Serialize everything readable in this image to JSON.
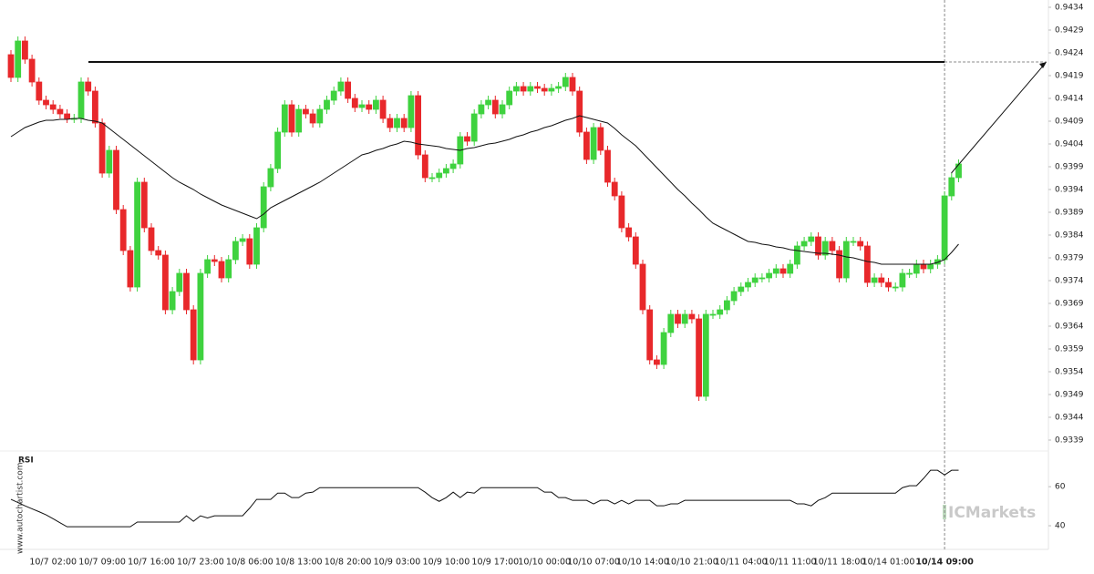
{
  "chart_data": [
    {
      "type": "candlestick",
      "up_color": "#3fd23f",
      "down_color": "#e8282b",
      "ma_color": "#111111",
      "resistance_color": "#111111",
      "ylim": [
        0.93366,
        0.94356
      ],
      "yticks": [
        0.9434,
        0.9429,
        0.9424,
        0.9419,
        0.9414,
        0.9409,
        0.9404,
        0.9399,
        0.9394,
        0.9389,
        0.9384,
        0.9379,
        0.9374,
        0.9369,
        0.9364,
        0.9359,
        0.9354,
        0.9349,
        0.9344,
        0.9339
      ],
      "resistance": 0.9422,
      "categories": [
        null,
        null,
        null,
        null,
        null,
        null,
        "10/7 02:00",
        null,
        null,
        null,
        null,
        null,
        null,
        "10/7 09:00",
        null,
        null,
        null,
        null,
        null,
        null,
        "10/7 16:00",
        null,
        null,
        null,
        null,
        null,
        null,
        "10/7 23:00",
        null,
        null,
        null,
        null,
        null,
        null,
        "10/8 06:00",
        null,
        null,
        null,
        null,
        null,
        null,
        "10/8 13:00",
        null,
        null,
        null,
        null,
        null,
        null,
        "10/8 20:00",
        null,
        null,
        null,
        null,
        null,
        null,
        "10/9 03:00",
        null,
        null,
        null,
        null,
        null,
        null,
        "10/9 10:00",
        null,
        null,
        null,
        null,
        null,
        null,
        "10/9 17:00",
        null,
        null,
        null,
        null,
        null,
        null,
        "10/10 00:00",
        null,
        null,
        null,
        null,
        null,
        null,
        "10/10 07:00",
        null,
        null,
        null,
        null,
        null,
        null,
        "10/10 14:00",
        null,
        null,
        null,
        null,
        null,
        null,
        "10/10 21:00",
        null,
        null,
        null,
        null,
        null,
        null,
        "10/11 04:00",
        null,
        null,
        null,
        null,
        null,
        null,
        "10/11 11:00",
        null,
        null,
        null,
        null,
        null,
        null,
        "10/11 18:00",
        null,
        null,
        null,
        null,
        null,
        null,
        "10/14 01:00",
        null,
        null,
        null,
        null,
        null,
        null,
        null,
        "10/14 09:00",
        null,
        null
      ],
      "open": [
        0.94236,
        0.94186,
        0.94266,
        0.94226,
        0.94176,
        0.94136,
        0.94126,
        0.94116,
        0.94106,
        0.94096,
        0.94096,
        0.94176,
        0.94156,
        0.94086,
        0.93976,
        0.94026,
        0.93896,
        0.93806,
        0.93726,
        0.93956,
        0.93856,
        0.93806,
        0.93796,
        0.93676,
        0.93716,
        0.93756,
        0.93676,
        0.93566,
        0.93756,
        0.93786,
        0.93782,
        0.93746,
        0.93786,
        0.93826,
        0.93832,
        0.93776,
        0.93856,
        0.93946,
        0.93986,
        0.94066,
        0.94126,
        0.94066,
        0.94116,
        0.94106,
        0.94086,
        0.94116,
        0.94136,
        0.94156,
        0.94176,
        0.9414,
        0.9412,
        0.94126,
        0.94116,
        0.94136,
        0.94096,
        0.94076,
        0.94096,
        0.94076,
        0.94146,
        0.94016,
        0.93966,
        0.93966,
        0.93976,
        0.93986,
        0.93996,
        0.94056,
        0.94046,
        0.94106,
        0.94126,
        0.94136,
        0.94106,
        0.94126,
        0.94156,
        0.94166,
        0.94156,
        0.94166,
        0.94162,
        0.94156,
        0.94162,
        0.94166,
        0.94186,
        0.94156,
        0.94066,
        0.94006,
        0.94076,
        0.94026,
        0.93956,
        0.93926,
        0.93856,
        0.93836,
        0.93776,
        0.93676,
        0.93566,
        0.93556,
        0.93626,
        0.93666,
        0.93646,
        0.93666,
        0.93656,
        0.93486,
        0.93666,
        0.93666,
        0.93676,
        0.93696,
        0.93716,
        0.93726,
        0.93736,
        0.93746,
        0.93746,
        0.93756,
        0.93766,
        0.93756,
        0.93776,
        0.93816,
        0.93826,
        0.93836,
        0.93796,
        0.93826,
        0.93806,
        0.93746,
        0.93826,
        0.93826,
        0.93816,
        0.93736,
        0.93746,
        0.93736,
        0.93726,
        0.93726,
        0.93756,
        0.93756,
        0.93776,
        0.93766,
        0.93776,
        0.93786,
        0.93926,
        0.93966
      ],
      "high": [
        0.94246,
        0.94276,
        0.94276,
        0.94236,
        0.94186,
        0.94146,
        0.94136,
        0.94126,
        0.94116,
        0.94106,
        0.94186,
        0.94186,
        0.94166,
        0.94096,
        0.94036,
        0.94036,
        0.93906,
        0.93816,
        0.93966,
        0.93966,
        0.93866,
        0.93816,
        0.93806,
        0.93726,
        0.93766,
        0.93766,
        0.93686,
        0.93766,
        0.93796,
        0.93796,
        0.93792,
        0.93796,
        0.93836,
        0.93842,
        0.93842,
        0.93866,
        0.93956,
        0.93996,
        0.94076,
        0.94136,
        0.94136,
        0.94126,
        0.94126,
        0.94116,
        0.94126,
        0.94146,
        0.94166,
        0.94186,
        0.94186,
        0.9415,
        0.94136,
        0.94136,
        0.94146,
        0.94146,
        0.94106,
        0.94106,
        0.94106,
        0.94156,
        0.94156,
        0.94026,
        0.93976,
        0.93986,
        0.93996,
        0.94006,
        0.94066,
        0.94066,
        0.94116,
        0.94136,
        0.94146,
        0.94146,
        0.94136,
        0.94166,
        0.94176,
        0.94176,
        0.94176,
        0.94176,
        0.94172,
        0.94172,
        0.94176,
        0.94196,
        0.94196,
        0.94166,
        0.94076,
        0.94086,
        0.94086,
        0.94036,
        0.93966,
        0.93936,
        0.93866,
        0.93846,
        0.93786,
        0.93686,
        0.93576,
        0.93636,
        0.93676,
        0.93676,
        0.93676,
        0.93676,
        0.93666,
        0.93676,
        0.93676,
        0.93686,
        0.93706,
        0.93726,
        0.93736,
        0.93746,
        0.93756,
        0.93756,
        0.93766,
        0.93776,
        0.93776,
        0.93786,
        0.93826,
        0.93836,
        0.93846,
        0.93846,
        0.93836,
        0.93836,
        0.93816,
        0.93836,
        0.93836,
        0.93836,
        0.93826,
        0.93756,
        0.93756,
        0.93746,
        0.93736,
        0.93766,
        0.93766,
        0.93786,
        0.93786,
        0.93786,
        0.93796,
        0.93936,
        0.93976,
        0.94006
      ],
      "low": [
        0.94176,
        0.94176,
        0.94216,
        0.94166,
        0.94126,
        0.94116,
        0.94106,
        0.94096,
        0.94086,
        0.94086,
        0.94086,
        0.94146,
        0.94076,
        0.93966,
        0.93966,
        0.93886,
        0.93796,
        0.93716,
        0.93716,
        0.93846,
        0.93796,
        0.93786,
        0.93666,
        0.93666,
        0.93706,
        0.93666,
        0.93556,
        0.93556,
        0.93746,
        0.93772,
        0.93736,
        0.93736,
        0.93776,
        0.93816,
        0.93766,
        0.93766,
        0.93846,
        0.93936,
        0.93976,
        0.94056,
        0.94056,
        0.94056,
        0.94096,
        0.94076,
        0.94076,
        0.94106,
        0.94126,
        0.94146,
        0.9413,
        0.9411,
        0.9411,
        0.94106,
        0.94106,
        0.94086,
        0.94066,
        0.94066,
        0.94066,
        0.94066,
        0.94006,
        0.93956,
        0.93956,
        0.93956,
        0.93966,
        0.93976,
        0.93986,
        0.94036,
        0.94036,
        0.94096,
        0.94116,
        0.94096,
        0.94096,
        0.94116,
        0.94146,
        0.94146,
        0.94146,
        0.94152,
        0.94146,
        0.94146,
        0.94152,
        0.94156,
        0.94146,
        0.94056,
        0.93996,
        0.93996,
        0.94016,
        0.93946,
        0.93916,
        0.93846,
        0.93826,
        0.93766,
        0.93666,
        0.93556,
        0.93546,
        0.93546,
        0.93616,
        0.93636,
        0.93636,
        0.93646,
        0.93476,
        0.93476,
        0.93656,
        0.93656,
        0.93666,
        0.93686,
        0.93706,
        0.93716,
        0.93726,
        0.93736,
        0.93736,
        0.93746,
        0.93746,
        0.93746,
        0.93766,
        0.93806,
        0.93816,
        0.93786,
        0.93786,
        0.93796,
        0.93736,
        0.93736,
        0.93816,
        0.93806,
        0.93726,
        0.93726,
        0.93726,
        0.93716,
        0.93716,
        0.93716,
        0.93746,
        0.93746,
        0.93756,
        0.93756,
        0.93766,
        0.93776,
        0.93916,
        0.93956
      ],
      "close": [
        0.94186,
        0.94266,
        0.94226,
        0.94176,
        0.94136,
        0.94126,
        0.94116,
        0.94106,
        0.94096,
        0.94096,
        0.94176,
        0.94156,
        0.94086,
        0.93976,
        0.94026,
        0.93896,
        0.93806,
        0.93726,
        0.93956,
        0.93856,
        0.93806,
        0.93796,
        0.93676,
        0.93716,
        0.93756,
        0.93676,
        0.93566,
        0.93756,
        0.93786,
        0.93782,
        0.93746,
        0.93786,
        0.93826,
        0.93832,
        0.93776,
        0.93856,
        0.93946,
        0.93986,
        0.94066,
        0.94126,
        0.94066,
        0.94116,
        0.94106,
        0.94086,
        0.94116,
        0.94136,
        0.94156,
        0.94176,
        0.9414,
        0.9412,
        0.94126,
        0.94116,
        0.94136,
        0.94096,
        0.94076,
        0.94096,
        0.94076,
        0.94146,
        0.94016,
        0.93966,
        0.93966,
        0.93976,
        0.93986,
        0.93996,
        0.94056,
        0.94046,
        0.94106,
        0.94126,
        0.94136,
        0.94106,
        0.94126,
        0.94156,
        0.94166,
        0.94156,
        0.94166,
        0.94162,
        0.94156,
        0.94162,
        0.94166,
        0.94186,
        0.94156,
        0.94066,
        0.94006,
        0.94076,
        0.94026,
        0.93956,
        0.93926,
        0.93856,
        0.93836,
        0.93776,
        0.93676,
        0.93566,
        0.93556,
        0.93626,
        0.93666,
        0.93646,
        0.93666,
        0.93656,
        0.93486,
        0.93666,
        0.93666,
        0.93676,
        0.93696,
        0.93716,
        0.93726,
        0.93736,
        0.93746,
        0.93746,
        0.93756,
        0.93766,
        0.93756,
        0.93776,
        0.93816,
        0.93826,
        0.93836,
        0.93796,
        0.93826,
        0.93806,
        0.93746,
        0.93826,
        0.93826,
        0.93816,
        0.93736,
        0.93746,
        0.93736,
        0.93726,
        0.93726,
        0.93756,
        0.93756,
        0.93776,
        0.93766,
        0.93776,
        0.93786,
        0.93926,
        0.93966,
        0.93996
      ],
      "ma": [
        0.94056,
        0.94066,
        0.94076,
        0.94082,
        0.94088,
        0.94092,
        0.94092,
        0.94094,
        0.94094,
        0.94096,
        0.94096,
        0.94092,
        0.9409,
        0.94086,
        0.94074,
        0.94062,
        0.9405,
        0.94038,
        0.94026,
        0.94014,
        0.94002,
        0.9399,
        0.93978,
        0.93966,
        0.93956,
        0.93948,
        0.9394,
        0.9393,
        0.93922,
        0.93914,
        0.93906,
        0.939,
        0.93894,
        0.93888,
        0.93882,
        0.93876,
        0.93886,
        0.939,
        0.93908,
        0.93916,
        0.93924,
        0.93932,
        0.9394,
        0.93948,
        0.93956,
        0.93966,
        0.93976,
        0.93986,
        0.93996,
        0.94006,
        0.94016,
        0.9402,
        0.94026,
        0.9403,
        0.94036,
        0.9404,
        0.94046,
        0.94044,
        0.9404,
        0.94038,
        0.94036,
        0.94034,
        0.9403,
        0.94028,
        0.94026,
        0.9403,
        0.94032,
        0.94036,
        0.9404,
        0.94042,
        0.94046,
        0.9405,
        0.94056,
        0.9406,
        0.94066,
        0.9407,
        0.94076,
        0.9408,
        0.94086,
        0.94092,
        0.94096,
        0.94102,
        0.94098,
        0.94094,
        0.9409,
        0.94086,
        0.94074,
        0.9406,
        0.94048,
        0.94036,
        0.9402,
        0.94004,
        0.93988,
        0.93972,
        0.93956,
        0.9394,
        0.93926,
        0.9391,
        0.93896,
        0.9388,
        0.93866,
        0.93858,
        0.9385,
        0.93842,
        0.93834,
        0.93826,
        0.93824,
        0.9382,
        0.93818,
        0.93814,
        0.93812,
        0.93808,
        0.93806,
        0.93804,
        0.93802,
        0.938,
        0.938,
        0.93798,
        0.93796,
        0.93792,
        0.9379,
        0.93786,
        0.93782,
        0.9378,
        0.93776,
        0.93776,
        0.93776,
        0.93776,
        0.93776,
        0.93776,
        0.93776,
        0.93776,
        0.9378,
        0.93786,
        0.93802,
        0.9382
      ]
    },
    {
      "type": "line",
      "title": "RSI",
      "color": "#111111",
      "ylim": [
        30,
        75
      ],
      "yticks": [
        40,
        60
      ],
      "values": [
        53.5,
        51.9,
        50.2,
        48.7,
        47.2,
        45.6,
        43.6,
        41.5,
        39.5,
        39.5,
        39.5,
        39.5,
        39.5,
        39.5,
        39.5,
        39.5,
        39.5,
        39.5,
        41.9,
        41.9,
        41.9,
        41.9,
        41.9,
        41.9,
        41.9,
        45.1,
        42.3,
        45.1,
        44.0,
        45.1,
        45.1,
        45.1,
        45.1,
        45.1,
        49.0,
        53.5,
        53.5,
        53.5,
        56.7,
        56.7,
        54.4,
        54.4,
        56.7,
        57.2,
        59.5,
        59.5,
        59.5,
        59.5,
        59.5,
        59.5,
        59.5,
        59.5,
        59.5,
        59.5,
        59.5,
        59.5,
        59.5,
        59.5,
        59.5,
        57.2,
        54.4,
        52.5,
        54.4,
        57.2,
        54.4,
        57.2,
        56.7,
        59.5,
        59.5,
        59.5,
        59.5,
        59.5,
        59.5,
        59.5,
        59.5,
        59.5,
        57.2,
        57.2,
        54.4,
        54.4,
        53.0,
        53.0,
        53.0,
        51.2,
        53.0,
        53.0,
        51.2,
        53.0,
        51.2,
        53.0,
        53.0,
        53.0,
        50.2,
        50.2,
        51.2,
        51.2,
        53.0,
        53.0,
        53.0,
        53.0,
        53.0,
        53.0,
        53.0,
        53.0,
        53.0,
        53.0,
        53.0,
        53.0,
        53.0,
        53.0,
        53.0,
        53.0,
        51.2,
        51.2,
        50.2,
        53.0,
        54.4,
        56.7,
        56.7,
        56.7,
        56.7,
        56.7,
        56.7,
        56.7,
        56.7,
        56.7,
        56.7,
        59.5,
        60.5,
        60.5,
        64.2,
        68.4,
        68.4,
        66.0,
        68.4,
        68.4
      ]
    }
  ],
  "watermark": {
    "site": "www.autochartist.com",
    "logo": "ICMarkets"
  }
}
